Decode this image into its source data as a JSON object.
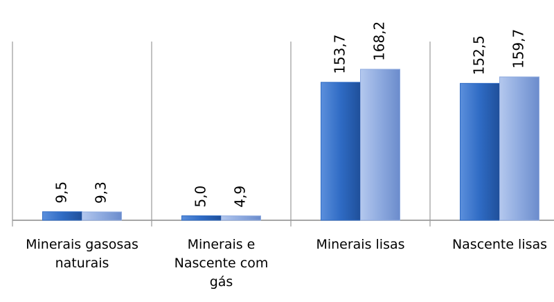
{
  "chart_data": {
    "type": "bar",
    "categories": [
      "Minerais gasosas\nnaturais",
      "Minerais e\nNascente com\ngás",
      "Minerais lisas",
      "Nascente lisas"
    ],
    "series": [
      {
        "color": "#2f6bc4",
        "values": [
          9.5,
          5.0,
          153.7,
          152.5
        ],
        "value_labels": [
          "9,5",
          "5,0",
          "153,7",
          "152,5"
        ]
      },
      {
        "color": "#8eaadf",
        "values": [
          9.3,
          4.9,
          168.2,
          159.7
        ],
        "value_labels": [
          "9,3",
          "4,9",
          "168,2",
          "159,7"
        ]
      }
    ]
  }
}
